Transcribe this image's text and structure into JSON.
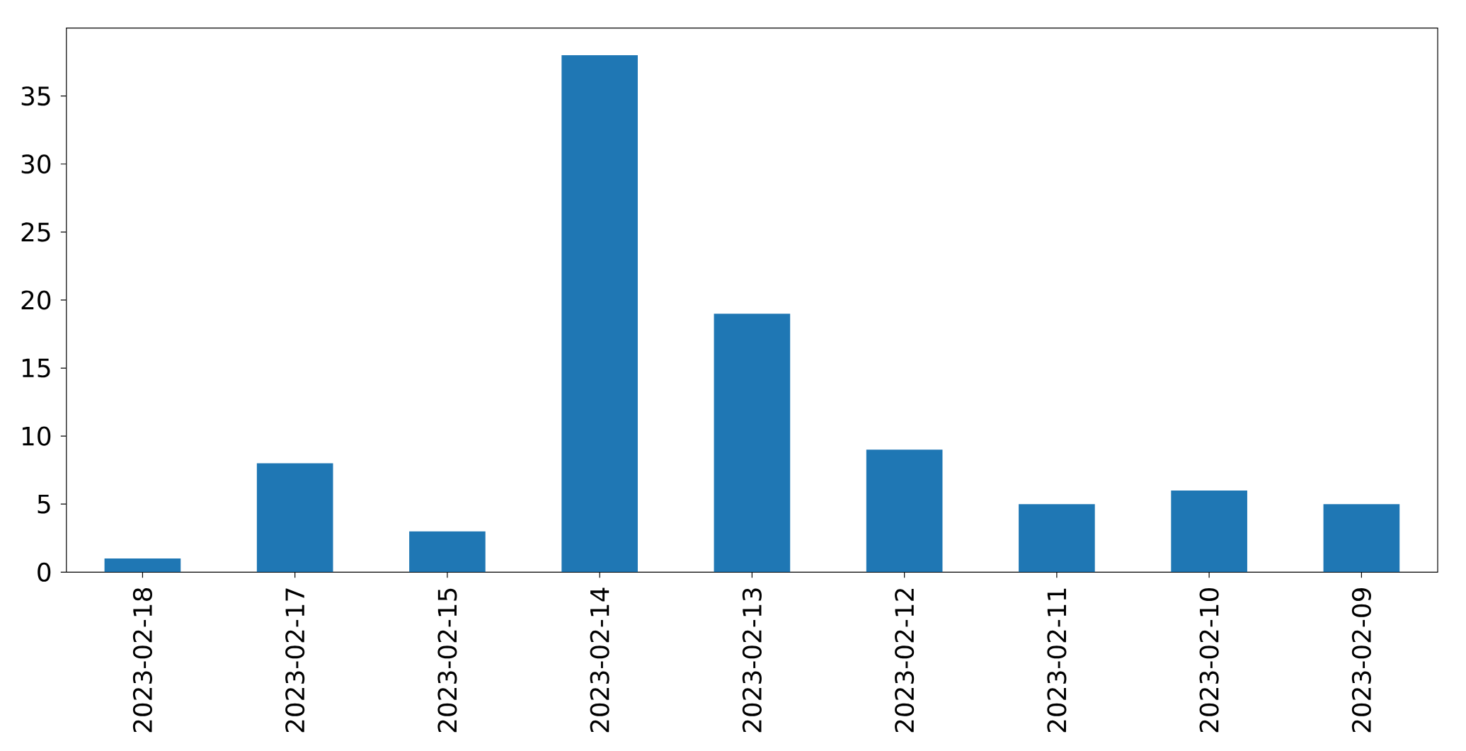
{
  "chart_data": {
    "type": "bar",
    "categories": [
      "2023-02-18",
      "2023-02-17",
      "2023-02-15",
      "2023-02-14",
      "2023-02-13",
      "2023-02-12",
      "2023-02-11",
      "2023-02-10",
      "2023-02-09"
    ],
    "values": [
      1,
      8,
      3,
      38,
      19,
      9,
      5,
      6,
      5
    ],
    "color": "#1f77b4",
    "ylim": [
      0,
      40
    ],
    "yticks": [
      0,
      5,
      10,
      15,
      20,
      25,
      30,
      35
    ]
  }
}
